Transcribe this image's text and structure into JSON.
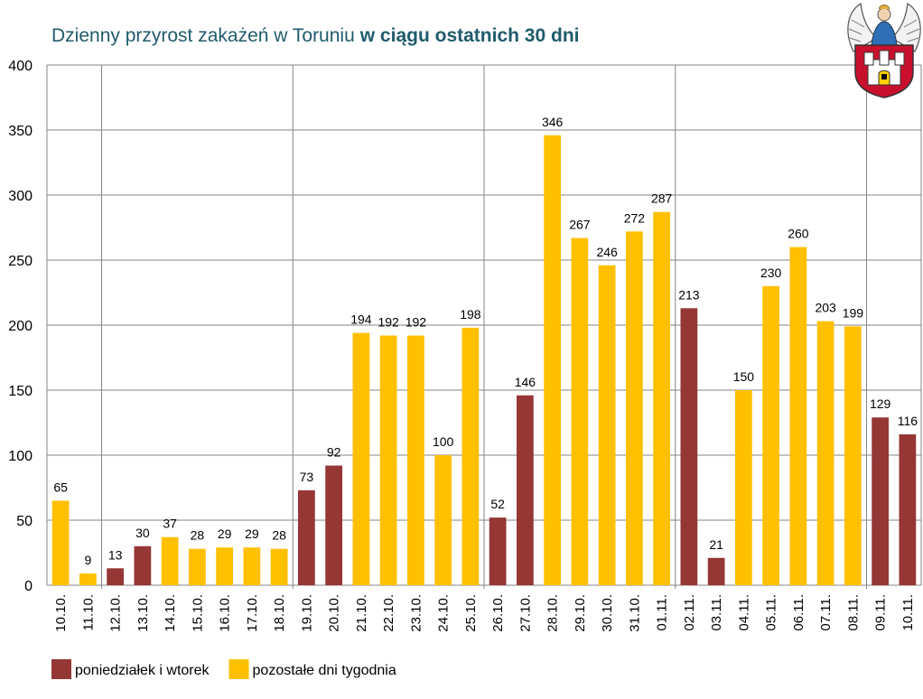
{
  "chart_data": {
    "type": "bar",
    "title": {
      "normal": "Dzienny przyrost zakażeń w Toruniu",
      "bold": "w ciągu ostatnich 30 dni"
    },
    "categories": [
      "10.10.",
      "11.10.",
      "12.10.",
      "13.10.",
      "14.10.",
      "15.10.",
      "16.10.",
      "17.10.",
      "18.10.",
      "19.10.",
      "20.10.",
      "21.10.",
      "22.10.",
      "23.10.",
      "24.10.",
      "25.10.",
      "26.10.",
      "27.10.",
      "28.10.",
      "29.10.",
      "30.10.",
      "31.10.",
      "01.11.",
      "02.11.",
      "03.11.",
      "04.11.",
      "05.11.",
      "06.11.",
      "07.11.",
      "08.11.",
      "09.11.",
      "10.11."
    ],
    "values": [
      65,
      9,
      13,
      30,
      37,
      28,
      29,
      29,
      28,
      73,
      92,
      194,
      192,
      192,
      100,
      198,
      52,
      146,
      346,
      267,
      246,
      272,
      287,
      213,
      21,
      150,
      230,
      260,
      203,
      199,
      129,
      116
    ],
    "groups": [
      "other",
      "other",
      "mon_tue",
      "mon_tue",
      "other",
      "other",
      "other",
      "other",
      "other",
      "mon_tue",
      "mon_tue",
      "other",
      "other",
      "other",
      "other",
      "other",
      "mon_tue",
      "mon_tue",
      "other",
      "other",
      "other",
      "other",
      "other",
      "mon_tue",
      "mon_tue",
      "other",
      "other",
      "other",
      "other",
      "other",
      "mon_tue",
      "mon_tue"
    ],
    "ylim": [
      0,
      400
    ],
    "yticks": [
      0,
      50,
      100,
      150,
      200,
      250,
      300,
      350,
      400
    ],
    "grid": "horizontal",
    "week_separators_after": [
      "11.10.",
      "18.10.",
      "25.10.",
      "01.11.",
      "08.11."
    ],
    "legend": {
      "placement": "bottom-left",
      "items": [
        {
          "key": "mon_tue",
          "label": "poniedziałek i wtorek",
          "color": "#953735"
        },
        {
          "key": "other",
          "label": "pozostałe dni tygodnia",
          "color": "#FFC000"
        }
      ]
    },
    "colors": {
      "mon_tue": "#953735",
      "other": "#FFC000",
      "grid": "#868686",
      "title": "#1F5B6B"
    }
  },
  "logo": {
    "icon": "torun-coat-of-arms-icon"
  }
}
